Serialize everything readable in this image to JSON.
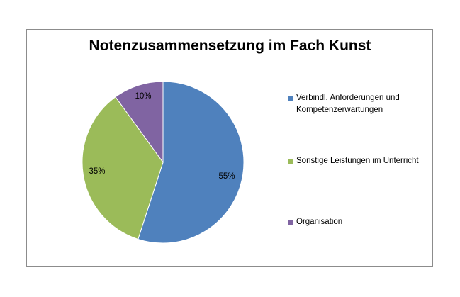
{
  "chart_data": {
    "type": "pie",
    "title": "Notenzusammensetzung im Fach Kunst",
    "categories": [
      "Verbindl. Anforderungen und Kompetenzerwartungen",
      "Sonstige Leistungen im Unterricht",
      "Organisation"
    ],
    "values": [
      55,
      35,
      10
    ],
    "data_labels": [
      "55%",
      "35%",
      "10%"
    ],
    "colors": [
      "#4f81bd",
      "#9bbb59",
      "#8064a2"
    ],
    "legend_position": "right"
  }
}
